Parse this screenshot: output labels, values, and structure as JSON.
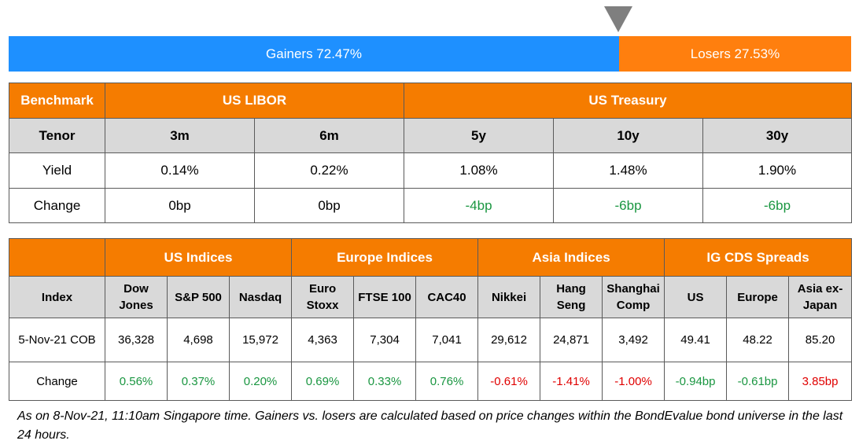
{
  "gainers_label": "Gainers 72.47%",
  "losers_label": "Losers 27.53%",
  "gainers_fraction": 0.7247,
  "benchmark_table": {
    "h_benchmark": "Benchmark",
    "h_libor": "US LIBOR",
    "h_treasury": "US Treasury",
    "tenor_label": "Tenor",
    "tenors": [
      "3m",
      "6m",
      "5y",
      "10y",
      "30y"
    ],
    "yield_label": "Yield",
    "yields": [
      "0.14%",
      "0.22%",
      "1.08%",
      "1.48%",
      "1.90%"
    ],
    "change_label": "Change",
    "changes": [
      "0bp",
      "0bp",
      "-4bp",
      "-6bp",
      "-6bp"
    ]
  },
  "indices_table": {
    "h_us": "US Indices",
    "h_europe": "Europe Indices",
    "h_asia": "Asia Indices",
    "h_cds": "IG CDS Spreads",
    "index_label": "Index",
    "columns": [
      [
        "Dow",
        "Jones"
      ],
      [
        "S&P 500"
      ],
      [
        "Nasdaq"
      ],
      [
        "Euro",
        "Stoxx"
      ],
      [
        "FTSE 100"
      ],
      [
        "CAC40"
      ],
      [
        "Nikkei"
      ],
      [
        "Hang",
        "Seng"
      ],
      [
        "Shanghai",
        "Comp"
      ],
      [
        "US"
      ],
      [
        "Europe"
      ],
      [
        "Asia ex-",
        "Japan"
      ]
    ],
    "date_label": "5-Nov-21 COB",
    "values": [
      "36,328",
      "4,698",
      "15,972",
      "4,363",
      "7,304",
      "7,041",
      "29,612",
      "24,871",
      "3,492",
      "49.41",
      "48.22",
      "85.20"
    ],
    "change_label": "Change",
    "changes": [
      "0.56%",
      "0.37%",
      "0.20%",
      "0.69%",
      "0.33%",
      "0.76%",
      "-0.61%",
      "-1.41%",
      "-1.00%",
      "-0.94bp",
      "-0.61bp",
      "3.85bp"
    ]
  },
  "footnote": "As on 8-Nov-21, 11:10am Singapore time. Gainers vs. losers are calculated based on price changes within the BondEvalue bond universe in the last 24 hours.",
  "colors": {
    "gainers": "#1e90ff",
    "losers": "#ff7f0e",
    "header": "#f57c00",
    "subheader": "#d9d9d9",
    "positive": "#1a9641",
    "negative": "#e00000"
  }
}
